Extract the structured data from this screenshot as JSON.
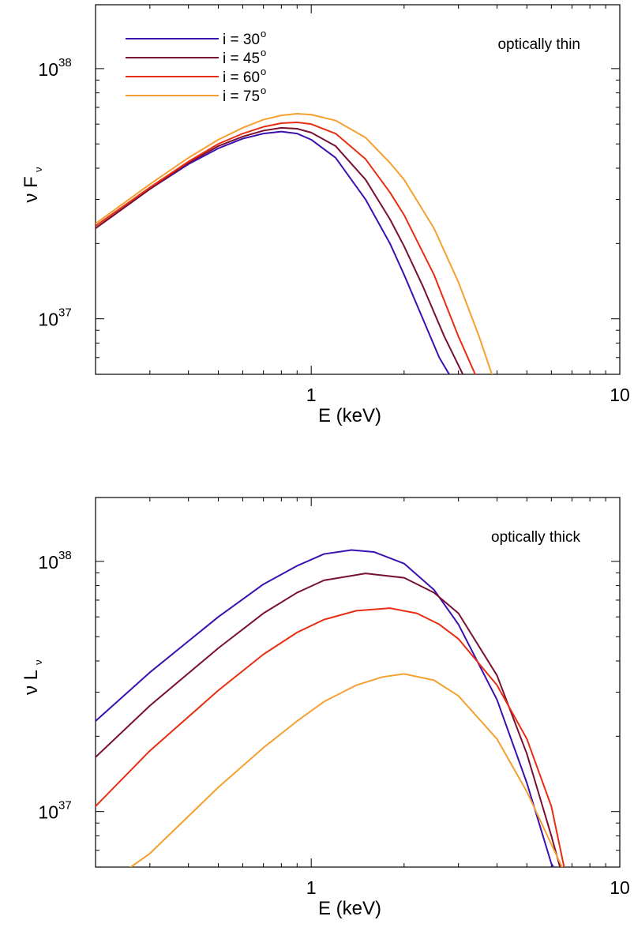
{
  "chart_data": [
    {
      "type": "line",
      "annotation": "optically thin",
      "xlabel": "E (keV)",
      "ylabel_main": "ν F",
      "ylabel_sub": "ν",
      "xscale": "log",
      "yscale": "log",
      "xlim": [
        0.2,
        10
      ],
      "ylim": [
        6e+36,
        1.8e+38
      ],
      "x_ticks": [
        {
          "value": 1,
          "label": "1"
        },
        {
          "value": 10,
          "label": "10"
        }
      ],
      "y_ticks": [
        {
          "value": 1e+37,
          "base": "10",
          "exp": "37"
        },
        {
          "value": 1e+38,
          "base": "10",
          "exp": "38"
        }
      ],
      "grid": false,
      "legend_position": "top-left",
      "series": [
        {
          "name": "i = 30",
          "name_sup": "o",
          "color": "#3a10b0",
          "x": [
            0.2,
            0.3,
            0.4,
            0.5,
            0.6,
            0.7,
            0.8,
            0.9,
            1.0,
            1.2,
            1.5,
            1.8,
            2.0,
            2.3,
            2.6,
            2.8
          ],
          "y": [
            2.3e+37,
            3.3e+37,
            4.15e+37,
            4.8e+37,
            5.25e+37,
            5.5e+37,
            5.6e+37,
            5.5e+37,
            5.2e+37,
            4.4e+37,
            3e+37,
            2e+37,
            1.5e+37,
            1e+37,
            7e+36,
            6e+36
          ]
        },
        {
          "name": "i = 45",
          "name_sup": "o",
          "color": "#7a1030",
          "x": [
            0.2,
            0.3,
            0.4,
            0.5,
            0.6,
            0.7,
            0.8,
            0.9,
            1.0,
            1.2,
            1.5,
            1.8,
            2.0,
            2.3,
            2.7,
            3.1
          ],
          "y": [
            2.3e+37,
            3.3e+37,
            4.2e+37,
            4.9e+37,
            5.35e+37,
            5.65e+37,
            5.8e+37,
            5.75e+37,
            5.55e+37,
            4.9e+37,
            3.6e+37,
            2.5e+37,
            1.95e+37,
            1.35e+37,
            8.5e+36,
            6e+36
          ]
        },
        {
          "name": "i = 60",
          "name_sup": "o",
          "color": "#e82d12",
          "x": [
            0.2,
            0.3,
            0.4,
            0.5,
            0.6,
            0.7,
            0.8,
            0.9,
            1.0,
            1.2,
            1.5,
            1.8,
            2.0,
            2.5,
            3.0,
            3.4
          ],
          "y": [
            2.35e+37,
            3.35e+37,
            4.25e+37,
            5e+37,
            5.5e+37,
            5.85e+37,
            6.05e+37,
            6.1e+37,
            6e+37,
            5.5e+37,
            4.35e+37,
            3.2e+37,
            2.6e+37,
            1.5e+37,
            8.5e+36,
            6e+36
          ]
        },
        {
          "name": "i = 75",
          "name_sup": "o",
          "color": "#f5a030",
          "x": [
            0.2,
            0.3,
            0.4,
            0.5,
            0.6,
            0.7,
            0.8,
            0.9,
            1.0,
            1.2,
            1.5,
            1.8,
            2.0,
            2.5,
            3.0,
            3.5,
            3.85
          ],
          "y": [
            2.4e+37,
            3.45e+37,
            4.4e+37,
            5.2e+37,
            5.8e+37,
            6.25e+37,
            6.5e+37,
            6.6e+37,
            6.55e+37,
            6.2e+37,
            5.3e+37,
            4.2e+37,
            3.6e+37,
            2.3e+37,
            1.4e+37,
            8.5e+36,
            6e+36
          ]
        }
      ]
    },
    {
      "type": "line",
      "annotation": "optically thick",
      "xlabel": "E (keV)",
      "ylabel_main": "ν L",
      "ylabel_sub": "ν",
      "xscale": "log",
      "yscale": "log",
      "xlim": [
        0.2,
        10
      ],
      "ylim": [
        6e+36,
        1.8e+38
      ],
      "x_ticks": [
        {
          "value": 1,
          "label": "1"
        },
        {
          "value": 10,
          "label": "10"
        }
      ],
      "y_ticks": [
        {
          "value": 1e+37,
          "base": "10",
          "exp": "37"
        },
        {
          "value": 1e+38,
          "base": "10",
          "exp": "38"
        }
      ],
      "grid": false,
      "series": [
        {
          "name": "i = 30",
          "color": "#3a10b0",
          "x": [
            0.2,
            0.3,
            0.5,
            0.7,
            0.9,
            1.1,
            1.35,
            1.6,
            2.0,
            2.5,
            3.0,
            4.0,
            5.0,
            6.0,
            6.1
          ],
          "y": [
            2.3e+37,
            3.6e+37,
            6e+37,
            8.1e+37,
            9.6e+37,
            1.07e+38,
            1.11e+38,
            1.09e+38,
            9.8e+37,
            7.7e+37,
            5.6e+37,
            2.8e+37,
            1.3e+37,
            6.2e+36,
            6e+36
          ]
        },
        {
          "name": "i = 45",
          "color": "#7a1030",
          "x": [
            0.2,
            0.3,
            0.5,
            0.7,
            0.9,
            1.1,
            1.5,
            2.0,
            2.5,
            3.0,
            4.0,
            5.0,
            6.0,
            6.4
          ],
          "y": [
            1.65e+37,
            2.65e+37,
            4.5e+37,
            6.2e+37,
            7.5e+37,
            8.4e+37,
            8.95e+37,
            8.6e+37,
            7.5e+37,
            6.2e+37,
            3.5e+37,
            1.7e+37,
            8e+36,
            6e+36
          ]
        },
        {
          "name": "i = 60",
          "color": "#e82d12",
          "x": [
            0.2,
            0.3,
            0.5,
            0.7,
            0.9,
            1.1,
            1.4,
            1.8,
            2.2,
            2.6,
            3.0,
            4.0,
            5.0,
            6.0,
            6.6
          ],
          "y": [
            1.05e+37,
            1.75e+37,
            3.05e+37,
            4.25e+37,
            5.2e+37,
            5.85e+37,
            6.35e+37,
            6.5e+37,
            6.2e+37,
            5.6e+37,
            4.9e+37,
            3.2e+37,
            1.95e+37,
            1.05e+37,
            6e+36
          ]
        },
        {
          "name": "i = 75",
          "color": "#f5a030",
          "x": [
            0.26,
            0.3,
            0.5,
            0.7,
            0.9,
            1.1,
            1.4,
            1.7,
            2.0,
            2.5,
            3.0,
            4.0,
            5.0,
            6.0,
            6.5
          ],
          "y": [
            6e+36,
            6.8e+36,
            1.25e+37,
            1.8e+37,
            2.3e+37,
            2.75e+37,
            3.2e+37,
            3.45e+37,
            3.55e+37,
            3.35e+37,
            2.9e+37,
            1.95e+37,
            1.2e+37,
            7.4e+36,
            6e+36
          ]
        }
      ]
    }
  ]
}
